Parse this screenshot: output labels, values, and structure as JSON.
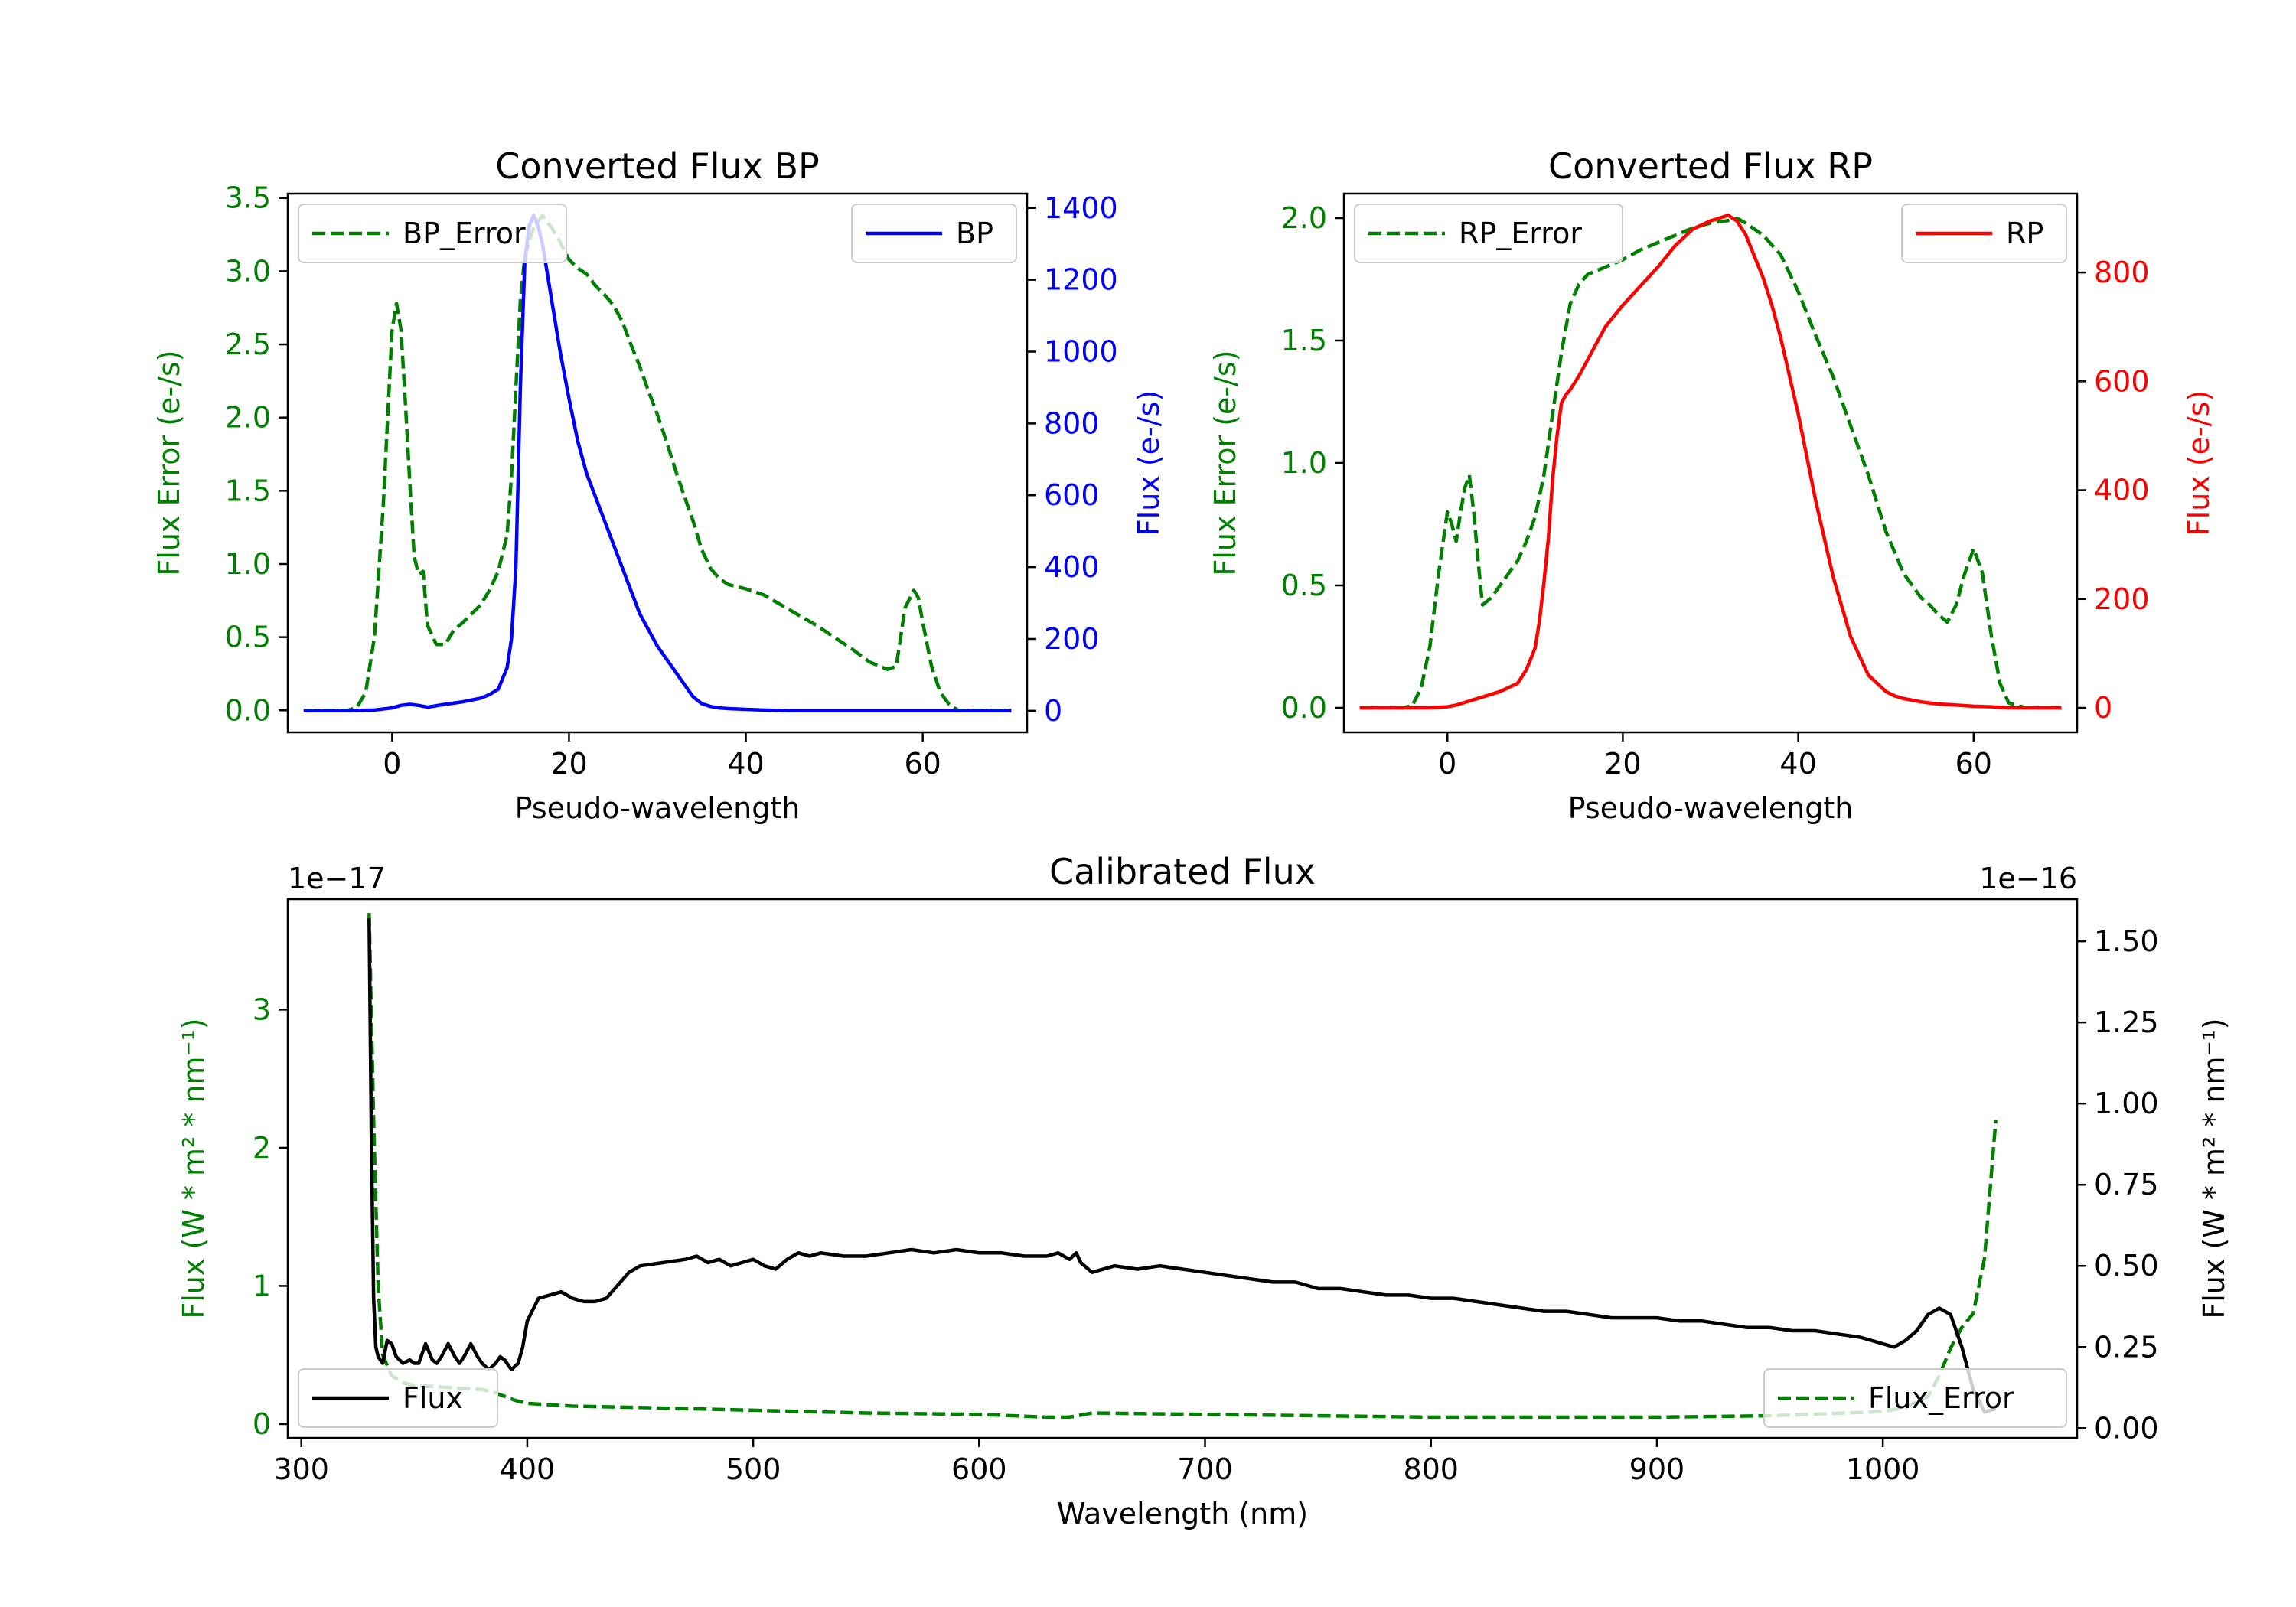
{
  "colors": {
    "green": "#008000",
    "blue": "#0000ff",
    "red": "#ff0000",
    "black": "#000000"
  },
  "chart_data": [
    {
      "type": "line",
      "title": "Converted Flux BP",
      "xlabel": "Pseudo-wavelength",
      "ylabel_left": "Flux Error (e-/s)",
      "ylabel_right": "Flux (e-/s)",
      "xlim": [
        -11.8,
        71.8
      ],
      "ylim_left": [
        -0.15,
        3.53
      ],
      "ylim_right": [
        -60,
        1440
      ],
      "xticks": [
        0,
        20,
        40,
        60
      ],
      "xtick_labels": [
        "0",
        "20",
        "40",
        "60"
      ],
      "yticks_left": [
        0.0,
        0.5,
        1.0,
        1.5,
        2.0,
        2.5,
        3.0,
        3.5
      ],
      "ytick_labels_left": [
        "0.0",
        "0.5",
        "1.0",
        "1.5",
        "2.0",
        "2.5",
        "3.0",
        "3.5"
      ],
      "yticks_right": [
        0,
        200,
        400,
        600,
        800,
        1000,
        1200,
        1400
      ],
      "ytick_labels_right": [
        "0",
        "200",
        "400",
        "600",
        "800",
        "1000",
        "1200",
        "1400"
      ],
      "legend_left": "BP_Error",
      "legend_right": "BP",
      "series": [
        {
          "name": "BP_Error",
          "axis": "left",
          "style": "dashed",
          "color": "#008000",
          "x": [
            -10,
            -5,
            -4,
            -3,
            -2,
            -1,
            0,
            0.5,
            1,
            1.5,
            2,
            2.5,
            3,
            3.5,
            4,
            5,
            6,
            7,
            8,
            9,
            10,
            11,
            12,
            13,
            13.5,
            14,
            14.5,
            15,
            16,
            17,
            18,
            19,
            20,
            21,
            22,
            23,
            24,
            25,
            26,
            27,
            28,
            29,
            30,
            31,
            32,
            33,
            34,
            35,
            36,
            37,
            38,
            40,
            42,
            44,
            46,
            48,
            50,
            52,
            54,
            56,
            57,
            57.5,
            58,
            59,
            59.5,
            60,
            61,
            62,
            63,
            64,
            66,
            68,
            70
          ],
          "values": [
            0,
            0,
            0.02,
            0.12,
            0.5,
            1.4,
            2.6,
            2.78,
            2.6,
            2.1,
            1.55,
            1.05,
            0.93,
            0.95,
            0.58,
            0.45,
            0.45,
            0.55,
            0.6,
            0.66,
            0.72,
            0.82,
            0.95,
            1.2,
            1.6,
            2.2,
            2.8,
            3.1,
            3.3,
            3.38,
            3.3,
            3.2,
            3.08,
            3.02,
            2.98,
            2.9,
            2.84,
            2.77,
            2.66,
            2.5,
            2.35,
            2.18,
            2.02,
            1.84,
            1.65,
            1.47,
            1.3,
            1.1,
            0.97,
            0.9,
            0.86,
            0.83,
            0.79,
            0.72,
            0.65,
            0.58,
            0.5,
            0.42,
            0.33,
            0.28,
            0.3,
            0.5,
            0.7,
            0.82,
            0.77,
            0.6,
            0.3,
            0.12,
            0.04,
            0,
            0,
            0,
            0
          ]
        },
        {
          "name": "BP",
          "axis": "right",
          "style": "solid",
          "color": "#0000ff",
          "x": [
            -10,
            -5,
            -2,
            0,
            1,
            2,
            3,
            4,
            6,
            8,
            10,
            11,
            12,
            13,
            13.5,
            14,
            14.5,
            15,
            15.5,
            16,
            16.5,
            17,
            18,
            19,
            20,
            21,
            22,
            24,
            26,
            28,
            30,
            32,
            34,
            35,
            36,
            37,
            38,
            40,
            42,
            45,
            50,
            55,
            60,
            65,
            70
          ],
          "values": [
            0,
            0,
            2,
            8,
            15,
            18,
            15,
            10,
            18,
            25,
            35,
            45,
            60,
            120,
            200,
            400,
            900,
            1250,
            1350,
            1380,
            1350,
            1300,
            1150,
            1000,
            870,
            750,
            660,
            530,
            400,
            270,
            180,
            110,
            40,
            20,
            12,
            8,
            6,
            4,
            2,
            0,
            0,
            0,
            0,
            0,
            0
          ]
        }
      ]
    },
    {
      "type": "line",
      "title": "Converted Flux RP",
      "xlabel": "Pseudo-wavelength",
      "ylabel_left": "Flux Error (e-/s)",
      "ylabel_right": "Flux (e-/s)",
      "xlim": [
        -11.8,
        71.8
      ],
      "ylim_left": [
        -0.1,
        2.1
      ],
      "ylim_right": [
        -45,
        945
      ],
      "xticks": [
        0,
        20,
        40,
        60
      ],
      "xtick_labels": [
        "0",
        "20",
        "40",
        "60"
      ],
      "yticks_left": [
        0.0,
        0.5,
        1.0,
        1.5,
        2.0
      ],
      "ytick_labels_left": [
        "0.0",
        "0.5",
        "1.0",
        "1.5",
        "2.0"
      ],
      "yticks_right": [
        0,
        200,
        400,
        600,
        800
      ],
      "ytick_labels_right": [
        "0",
        "200",
        "400",
        "600",
        "800"
      ],
      "legend_left": "RP_Error",
      "legend_right": "RP",
      "series": [
        {
          "name": "RP_Error",
          "axis": "left",
          "style": "dashed",
          "color": "#008000",
          "x": [
            -10,
            -5,
            -4,
            -3,
            -2,
            -1,
            0,
            0.5,
            1,
            1.5,
            2,
            2.5,
            3,
            3.5,
            4,
            5,
            6,
            7,
            8,
            9,
            10,
            11,
            12,
            13,
            14,
            15,
            16,
            18,
            20,
            22,
            24,
            26,
            28,
            30,
            32,
            33,
            34,
            36,
            38,
            40,
            42,
            44,
            46,
            48,
            50,
            52,
            54,
            55,
            56,
            57,
            58,
            59,
            60,
            61,
            62,
            63,
            64,
            66,
            70
          ],
          "values": [
            0,
            0,
            0.01,
            0.08,
            0.25,
            0.55,
            0.8,
            0.75,
            0.68,
            0.8,
            0.9,
            0.95,
            0.8,
            0.6,
            0.42,
            0.45,
            0.5,
            0.55,
            0.6,
            0.68,
            0.78,
            0.95,
            1.2,
            1.45,
            1.65,
            1.73,
            1.77,
            1.8,
            1.83,
            1.87,
            1.9,
            1.93,
            1.96,
            1.98,
            1.99,
            2.0,
            1.98,
            1.93,
            1.85,
            1.7,
            1.52,
            1.35,
            1.15,
            0.95,
            0.72,
            0.55,
            0.45,
            0.42,
            0.38,
            0.35,
            0.42,
            0.55,
            0.65,
            0.55,
            0.3,
            0.1,
            0.02,
            0,
            0
          ]
        },
        {
          "name": "RP",
          "axis": "right",
          "style": "solid",
          "color": "#ff0000",
          "x": [
            -10,
            -5,
            -2,
            0,
            1,
            2,
            3,
            4,
            6,
            8,
            9,
            10,
            10.5,
            11,
            11.5,
            12,
            12.5,
            13,
            13.5,
            14,
            15,
            16,
            17,
            18,
            19,
            20,
            22,
            24,
            26,
            28,
            30,
            31,
            32,
            33,
            34,
            35,
            36,
            37,
            38,
            40,
            42,
            44,
            46,
            48,
            50,
            51,
            52,
            53,
            54,
            55,
            56,
            58,
            60,
            62,
            64,
            66,
            70
          ],
          "values": [
            0,
            0,
            0,
            2,
            5,
            10,
            15,
            20,
            30,
            45,
            70,
            110,
            160,
            230,
            310,
            420,
            500,
            560,
            575,
            585,
            610,
            640,
            670,
            700,
            720,
            740,
            775,
            810,
            850,
            880,
            895,
            900,
            905,
            895,
            870,
            830,
            790,
            740,
            680,
            540,
            380,
            240,
            130,
            60,
            30,
            22,
            17,
            14,
            11,
            9,
            7,
            5,
            3,
            2,
            0,
            0,
            0
          ]
        }
      ]
    },
    {
      "type": "line",
      "title": "Calibrated Flux",
      "xlabel": "Wavelength (nm)",
      "ylabel_left": "Flux (W * m² * nm⁻¹)",
      "ylabel_right": "Flux (W * m² * nm⁻¹)",
      "offset_left": "1e−17",
      "offset_right": "1e−16",
      "xlim": [
        294,
        1086
      ],
      "ylim_left": [
        -0.1,
        3.8
      ],
      "ylim_right": [
        -0.03,
        1.63
      ],
      "xticks": [
        300,
        400,
        500,
        600,
        700,
        800,
        900,
        1000
      ],
      "xtick_labels": [
        "300",
        "400",
        "500",
        "600",
        "700",
        "800",
        "900",
        "1000"
      ],
      "yticks_left": [
        0,
        1,
        2,
        3
      ],
      "ytick_labels_left": [
        "0",
        "1",
        "2",
        "3"
      ],
      "yticks_right": [
        0.0,
        0.25,
        0.5,
        0.75,
        1.0,
        1.25,
        1.5
      ],
      "ytick_labels_right": [
        "0.00",
        "0.25",
        "0.50",
        "0.75",
        "1.00",
        "1.25",
        "1.50"
      ],
      "legend_left": "Flux",
      "legend_right": "Flux_Error",
      "series": [
        {
          "name": "Flux_Error",
          "axis": "left",
          "style": "dashed",
          "color": "#008000",
          "x": [
            330,
            332,
            334,
            336,
            340,
            345,
            350,
            360,
            370,
            380,
            385,
            390,
            395,
            400,
            410,
            420,
            450,
            500,
            550,
            600,
            630,
            640,
            650,
            700,
            750,
            800,
            850,
            900,
            950,
            1000,
            1010,
            1020,
            1025,
            1030,
            1035,
            1040,
            1045,
            1050
          ],
          "values": [
            3.7,
            2.2,
            1.0,
            0.5,
            0.35,
            0.3,
            0.28,
            0.27,
            0.26,
            0.25,
            0.23,
            0.2,
            0.17,
            0.15,
            0.14,
            0.13,
            0.12,
            0.1,
            0.08,
            0.07,
            0.05,
            0.05,
            0.08,
            0.07,
            0.06,
            0.05,
            0.05,
            0.05,
            0.06,
            0.09,
            0.12,
            0.2,
            0.35,
            0.55,
            0.7,
            0.8,
            1.2,
            2.2
          ]
        },
        {
          "name": "Flux",
          "axis": "right",
          "style": "solid",
          "color": "#000000",
          "x": [
            330,
            331,
            332,
            333,
            334,
            336,
            338,
            340,
            342,
            345,
            348,
            350,
            352,
            355,
            358,
            360,
            362,
            365,
            368,
            370,
            372,
            375,
            378,
            380,
            383,
            386,
            388,
            390,
            393,
            396,
            398,
            400,
            405,
            410,
            415,
            420,
            425,
            430,
            435,
            440,
            445,
            450,
            460,
            470,
            475,
            480,
            485,
            490,
            495,
            500,
            505,
            510,
            515,
            520,
            525,
            530,
            540,
            550,
            560,
            570,
            580,
            590,
            600,
            610,
            620,
            630,
            635,
            640,
            643,
            645,
            650,
            660,
            670,
            680,
            690,
            700,
            710,
            720,
            730,
            740,
            750,
            760,
            770,
            780,
            790,
            800,
            810,
            820,
            830,
            840,
            850,
            860,
            870,
            880,
            890,
            900,
            910,
            920,
            930,
            940,
            950,
            960,
            970,
            980,
            990,
            1000,
            1005,
            1010,
            1015,
            1020,
            1025,
            1030,
            1035,
            1040,
            1045,
            1050
          ],
          "values": [
            1.57,
            0.9,
            0.4,
            0.25,
            0.22,
            0.2,
            0.27,
            0.26,
            0.22,
            0.2,
            0.21,
            0.2,
            0.2,
            0.26,
            0.21,
            0.2,
            0.22,
            0.26,
            0.22,
            0.2,
            0.22,
            0.26,
            0.22,
            0.2,
            0.18,
            0.2,
            0.22,
            0.21,
            0.18,
            0.2,
            0.25,
            0.33,
            0.4,
            0.41,
            0.42,
            0.4,
            0.39,
            0.39,
            0.4,
            0.44,
            0.48,
            0.5,
            0.51,
            0.52,
            0.53,
            0.51,
            0.52,
            0.5,
            0.51,
            0.52,
            0.5,
            0.49,
            0.52,
            0.54,
            0.53,
            0.54,
            0.53,
            0.53,
            0.54,
            0.55,
            0.54,
            0.55,
            0.54,
            0.54,
            0.53,
            0.53,
            0.54,
            0.52,
            0.54,
            0.51,
            0.48,
            0.5,
            0.49,
            0.5,
            0.49,
            0.48,
            0.47,
            0.46,
            0.45,
            0.45,
            0.43,
            0.43,
            0.42,
            0.41,
            0.41,
            0.4,
            0.4,
            0.39,
            0.38,
            0.37,
            0.36,
            0.36,
            0.35,
            0.34,
            0.34,
            0.34,
            0.33,
            0.33,
            0.32,
            0.31,
            0.31,
            0.3,
            0.3,
            0.29,
            0.28,
            0.26,
            0.25,
            0.27,
            0.3,
            0.35,
            0.37,
            0.35,
            0.25,
            0.12,
            0.05,
            0.06
          ]
        }
      ]
    }
  ]
}
